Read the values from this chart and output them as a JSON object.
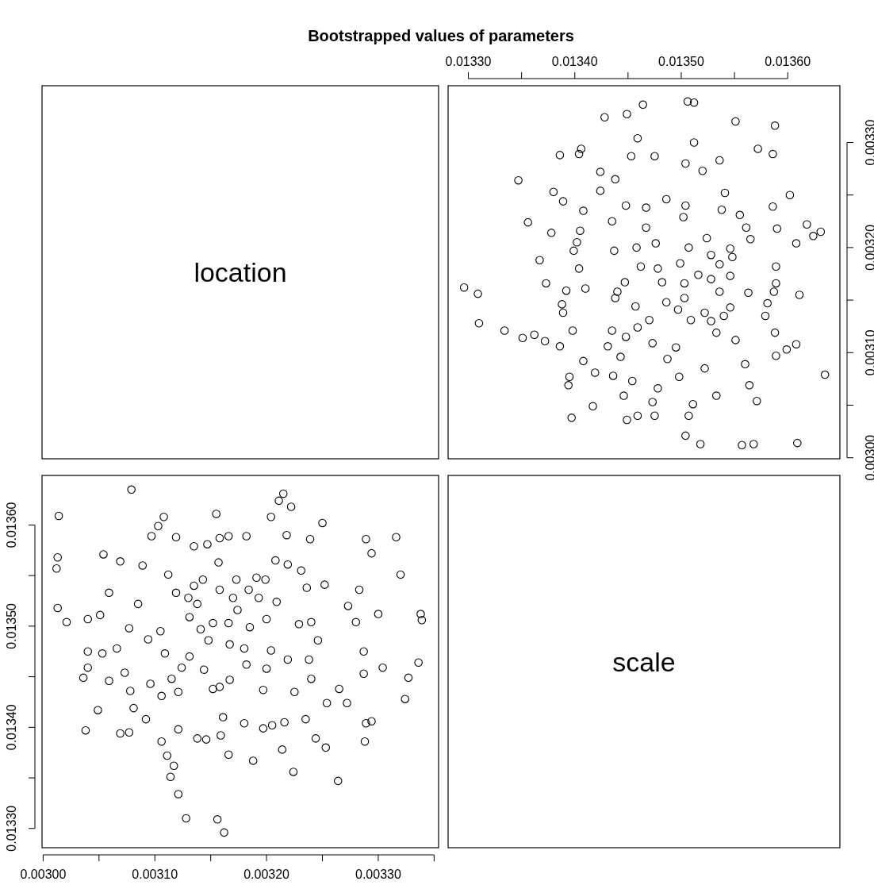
{
  "chart_data": [
    {
      "type": "other",
      "title": "Bootstrapped values of parameters",
      "annotations": [
        "location"
      ]
    },
    {
      "type": "scatter",
      "marker": "circle",
      "color": "#000000",
      "xlim": [
        0.013281,
        0.013649
      ],
      "ylim": [
        0.002999,
        0.003354
      ],
      "xticks": [
        {
          "value": 0.0133,
          "label": "0.01330"
        },
        {
          "value": 0.01335,
          "label": null
        },
        {
          "value": 0.0134,
          "label": "0.01340"
        },
        {
          "value": 0.01345,
          "label": null
        },
        {
          "value": 0.0135,
          "label": "0.01350"
        },
        {
          "value": 0.01355,
          "label": null
        },
        {
          "value": 0.0136,
          "label": "0.01360"
        }
      ],
      "yticks": [
        {
          "value": 0.003,
          "label": "0.00300"
        },
        {
          "value": 0.00305,
          "label": null
        },
        {
          "value": 0.0031,
          "label": "0.00310"
        },
        {
          "value": 0.00315,
          "label": null
        },
        {
          "value": 0.0032,
          "label": "0.00320"
        },
        {
          "value": 0.00325,
          "label": null
        },
        {
          "value": 0.0033,
          "label": "0.00330"
        }
      ],
      "x": [
        0.013635,
        0.013609,
        0.013631,
        0.013624,
        0.013618,
        0.013611,
        0.013608,
        0.013602,
        0.013608,
        0.013599,
        0.013589,
        0.013588,
        0.013586,
        0.013568,
        0.013557,
        0.013571,
        0.013518,
        0.013504,
        0.013551,
        0.013572,
        0.013512,
        0.013506,
        0.013464,
        0.013449,
        0.013428,
        0.013459,
        0.013512,
        0.013449,
        0.013397,
        0.013417,
        0.013394,
        0.013395,
        0.013386,
        0.013372,
        0.013362,
        0.013351,
        0.013334,
        0.01331,
        0.013309,
        0.013296,
        0.013356,
        0.013347,
        0.013386,
        0.01338,
        0.013367,
        0.013373,
        0.013378,
        0.013404,
        0.013406,
        0.013389,
        0.013424,
        0.013438,
        0.013453,
        0.013475,
        0.013504,
        0.013536,
        0.01352,
        0.013541,
        0.013586,
        0.01359,
        0.013589,
        0.013589,
        0.013587,
        0.013588,
        0.013581,
        0.013579,
        0.013564,
        0.01356,
        0.013533,
        0.013507,
        0.013511,
        0.013475,
        0.013473,
        0.013459,
        0.013446,
        0.013478,
        0.013454,
        0.013436,
        0.013419,
        0.013408,
        0.013487,
        0.013498,
        0.013522,
        0.013495,
        0.013473,
        0.013443,
        0.013431,
        0.013435,
        0.013398,
        0.013389,
        0.013388,
        0.013392,
        0.01341,
        0.013404,
        0.013399,
        0.013402,
        0.013405,
        0.013408,
        0.013435,
        0.013424,
        0.013448,
        0.013486,
        0.013467,
        0.013467,
        0.013476,
        0.013458,
        0.013437,
        0.013507,
        0.013524,
        0.013502,
        0.013504,
        0.013538,
        0.013555,
        0.013561,
        0.013565,
        0.013546,
        0.013548,
        0.013536,
        0.013528,
        0.013528,
        0.013503,
        0.013516,
        0.013499,
        0.013482,
        0.013478,
        0.013462,
        0.013447,
        0.01344,
        0.013438,
        0.013457,
        0.01347,
        0.013497,
        0.013503,
        0.013509,
        0.013522,
        0.013528,
        0.013546,
        0.013536,
        0.013563,
        0.013546,
        0.01354,
        0.013551,
        0.013533,
        0.013486,
        0.013459,
        0.013448
      ],
      "values": [
        0.003079,
        0.003014,
        0.003215,
        0.003211,
        0.003222,
        0.003155,
        0.003204,
        0.00325,
        0.003108,
        0.003103,
        0.003097,
        0.003316,
        0.003289,
        0.003013,
        0.003012,
        0.003054,
        0.003013,
        0.003021,
        0.00332,
        0.003294,
        0.003338,
        0.003339,
        0.003336,
        0.003327,
        0.003324,
        0.003304,
        0.0033,
        0.003036,
        0.003038,
        0.003049,
        0.003069,
        0.003077,
        0.003106,
        0.003111,
        0.003117,
        0.003114,
        0.003121,
        0.003128,
        0.003156,
        0.003162,
        0.003224,
        0.003264,
        0.003288,
        0.003253,
        0.003188,
        0.003166,
        0.003214,
        0.003289,
        0.003294,
        0.003244,
        0.003272,
        0.003265,
        0.003287,
        0.003287,
        0.00328,
        0.003283,
        0.003273,
        0.003252,
        0.003239,
        0.003218,
        0.003182,
        0.003166,
        0.003158,
        0.003119,
        0.003147,
        0.003135,
        0.003069,
        0.003089,
        0.003059,
        0.00304,
        0.003051,
        0.00304,
        0.003053,
        0.00304,
        0.003059,
        0.003066,
        0.003073,
        0.003078,
        0.003081,
        0.003092,
        0.003094,
        0.003077,
        0.003085,
        0.003105,
        0.003109,
        0.003096,
        0.003106,
        0.003121,
        0.003121,
        0.003138,
        0.003146,
        0.003159,
        0.003161,
        0.00318,
        0.003197,
        0.003205,
        0.003216,
        0.003235,
        0.003225,
        0.003254,
        0.00324,
        0.003246,
        0.003238,
        0.003219,
        0.003204,
        0.0032,
        0.003197,
        0.0032,
        0.003209,
        0.003229,
        0.00324,
        0.003236,
        0.003231,
        0.003219,
        0.003208,
        0.003199,
        0.003191,
        0.003184,
        0.003193,
        0.00317,
        0.003166,
        0.003174,
        0.003185,
        0.003167,
        0.00318,
        0.003182,
        0.003167,
        0.003158,
        0.003152,
        0.003144,
        0.003131,
        0.003141,
        0.003152,
        0.003131,
        0.003138,
        0.00313,
        0.003143,
        0.003158,
        0.003157,
        0.003173,
        0.003135,
        0.003112,
        0.003119,
        0.003148,
        0.003124,
        0.003115
      ]
    },
    {
      "type": "scatter",
      "marker": "circle",
      "color": "#000000",
      "xlim": [
        0.002999,
        0.003354
      ],
      "ylim": [
        0.013281,
        0.013649
      ],
      "xticks": [
        {
          "value": 0.003,
          "label": "0.00300"
        },
        {
          "value": 0.00305,
          "label": null
        },
        {
          "value": 0.0031,
          "label": "0.00310"
        },
        {
          "value": 0.00315,
          "label": null
        },
        {
          "value": 0.0032,
          "label": "0.00320"
        },
        {
          "value": 0.00325,
          "label": null
        },
        {
          "value": 0.0033,
          "label": "0.00330"
        },
        {
          "value": 0.00335,
          "label": null
        }
      ],
      "yticks": [
        {
          "value": 0.0133,
          "label": "0.01330"
        },
        {
          "value": 0.01335,
          "label": null
        },
        {
          "value": 0.0134,
          "label": "0.01340"
        },
        {
          "value": 0.01345,
          "label": null
        },
        {
          "value": 0.0135,
          "label": "0.01350"
        },
        {
          "value": 0.01355,
          "label": null
        },
        {
          "value": 0.0136,
          "label": "0.01360"
        }
      ],
      "x": [
        0.003079,
        0.003014,
        0.003215,
        0.003211,
        0.003222,
        0.003155,
        0.003204,
        0.00325,
        0.003108,
        0.003103,
        0.003097,
        0.003316,
        0.003289,
        0.003013,
        0.003012,
        0.003054,
        0.003013,
        0.003021,
        0.00332,
        0.003294,
        0.003338,
        0.003339,
        0.003336,
        0.003327,
        0.003324,
        0.003304,
        0.0033,
        0.003036,
        0.003038,
        0.003049,
        0.003069,
        0.003077,
        0.003106,
        0.003111,
        0.003117,
        0.003114,
        0.003121,
        0.003128,
        0.003156,
        0.003162,
        0.003224,
        0.003264,
        0.003288,
        0.003253,
        0.003188,
        0.003166,
        0.003214,
        0.003289,
        0.003294,
        0.003244,
        0.003272,
        0.003265,
        0.003287,
        0.003287,
        0.00328,
        0.003283,
        0.003273,
        0.003252,
        0.003239,
        0.003218,
        0.003182,
        0.003166,
        0.003158,
        0.003119,
        0.003147,
        0.003135,
        0.003069,
        0.003089,
        0.003059,
        0.00304,
        0.003051,
        0.00304,
        0.003053,
        0.00304,
        0.003059,
        0.003066,
        0.003073,
        0.003078,
        0.003081,
        0.003092,
        0.003094,
        0.003077,
        0.003085,
        0.003105,
        0.003109,
        0.003096,
        0.003106,
        0.003121,
        0.003121,
        0.003138,
        0.003146,
        0.003159,
        0.003161,
        0.00318,
        0.003197,
        0.003205,
        0.003216,
        0.003235,
        0.003225,
        0.003254,
        0.00324,
        0.003246,
        0.003238,
        0.003219,
        0.003204,
        0.0032,
        0.003197,
        0.0032,
        0.003209,
        0.003229,
        0.00324,
        0.003236,
        0.003231,
        0.003219,
        0.003208,
        0.003199,
        0.003191,
        0.003184,
        0.003193,
        0.00317,
        0.003166,
        0.003174,
        0.003185,
        0.003167,
        0.00318,
        0.003182,
        0.003167,
        0.003158,
        0.003152,
        0.003144,
        0.003131,
        0.003141,
        0.003152,
        0.003131,
        0.003138,
        0.00313,
        0.003143,
        0.003158,
        0.003157,
        0.003173,
        0.003135,
        0.003112,
        0.003119,
        0.003148,
        0.003124,
        0.003115
      ],
      "values": [
        0.013635,
        0.013609,
        0.013631,
        0.013624,
        0.013618,
        0.013611,
        0.013608,
        0.013602,
        0.013608,
        0.013599,
        0.013589,
        0.013588,
        0.013586,
        0.013568,
        0.013557,
        0.013571,
        0.013518,
        0.013504,
        0.013551,
        0.013572,
        0.013512,
        0.013506,
        0.013464,
        0.013449,
        0.013428,
        0.013459,
        0.013512,
        0.013449,
        0.013397,
        0.013417,
        0.013394,
        0.013395,
        0.013386,
        0.013372,
        0.013362,
        0.013351,
        0.013334,
        0.01331,
        0.013309,
        0.013296,
        0.013356,
        0.013347,
        0.013386,
        0.01338,
        0.013367,
        0.013373,
        0.013378,
        0.013404,
        0.013406,
        0.013389,
        0.013424,
        0.013438,
        0.013453,
        0.013475,
        0.013504,
        0.013536,
        0.01352,
        0.013541,
        0.013586,
        0.01359,
        0.013589,
        0.013589,
        0.013587,
        0.013588,
        0.013581,
        0.013579,
        0.013564,
        0.01356,
        0.013533,
        0.013507,
        0.013511,
        0.013475,
        0.013473,
        0.013459,
        0.013446,
        0.013478,
        0.013454,
        0.013436,
        0.013419,
        0.013408,
        0.013487,
        0.013498,
        0.013522,
        0.013495,
        0.013473,
        0.013443,
        0.013431,
        0.013435,
        0.013398,
        0.013389,
        0.013388,
        0.013392,
        0.01341,
        0.013404,
        0.013399,
        0.013402,
        0.013405,
        0.013408,
        0.013435,
        0.013424,
        0.013448,
        0.013486,
        0.013467,
        0.013467,
        0.013476,
        0.013458,
        0.013437,
        0.013507,
        0.013524,
        0.013502,
        0.013504,
        0.013538,
        0.013555,
        0.013561,
        0.013565,
        0.013546,
        0.013548,
        0.013536,
        0.013528,
        0.013528,
        0.013503,
        0.013516,
        0.013499,
        0.013482,
        0.013478,
        0.013462,
        0.013447,
        0.01344,
        0.013438,
        0.013457,
        0.01347,
        0.013497,
        0.013503,
        0.013509,
        0.013522,
        0.013528,
        0.013546,
        0.013536,
        0.013563,
        0.013546,
        0.01354,
        0.013551,
        0.013533,
        0.013486,
        0.013459,
        0.013448
      ]
    },
    {
      "type": "other",
      "annotations": [
        "scale"
      ]
    }
  ]
}
